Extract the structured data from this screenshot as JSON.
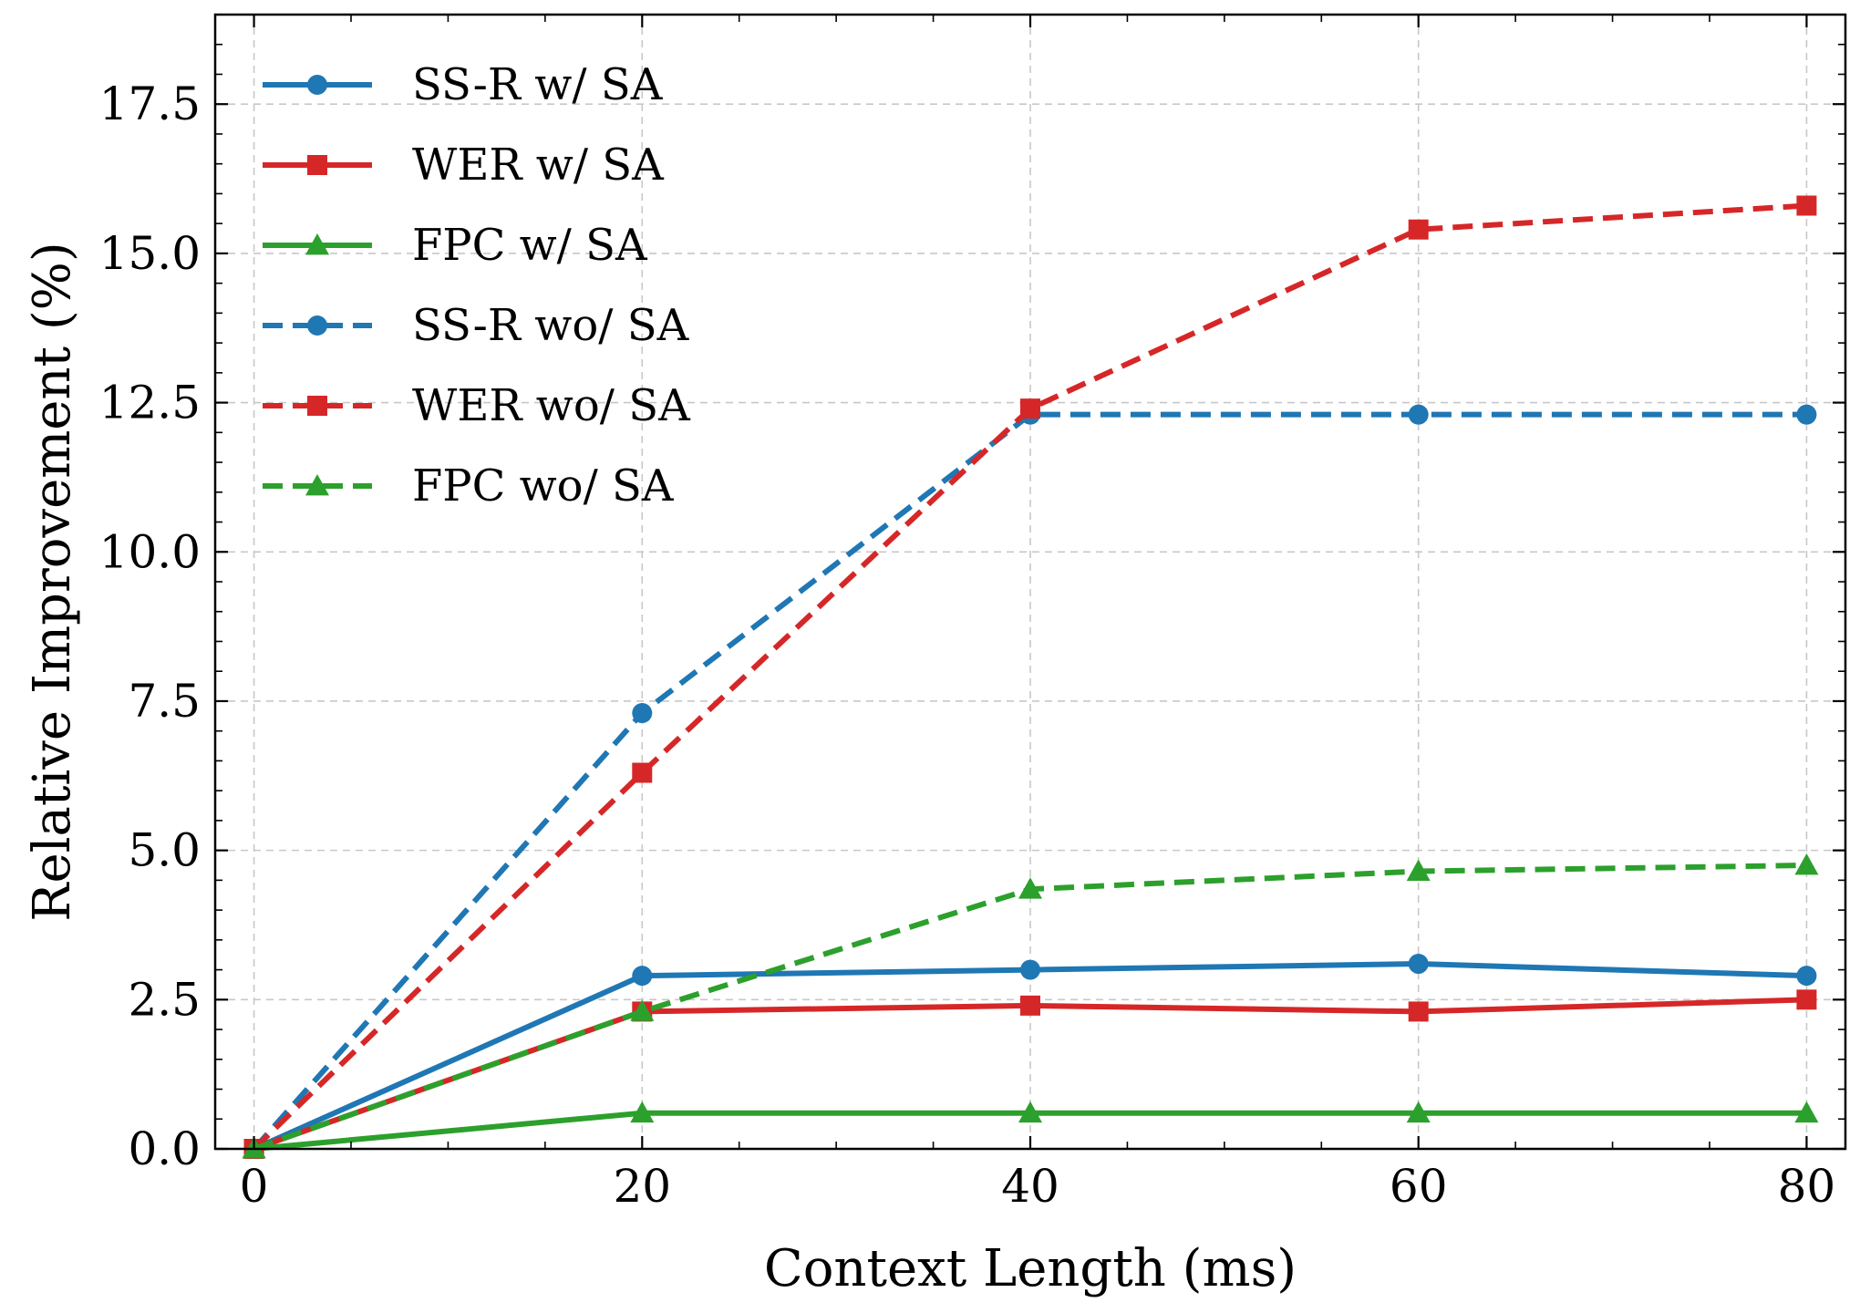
{
  "chart_data": {
    "type": "line",
    "title": "",
    "xlabel": "Context Length (ms)",
    "ylabel": "Relative Improvement (%)",
    "xlim": [
      -2,
      82
    ],
    "ylim": [
      0,
      19
    ],
    "x_ticks": [
      0,
      20,
      40,
      60,
      80
    ],
    "x_tick_labels": [
      "0",
      "20",
      "40",
      "60",
      "80"
    ],
    "y_ticks": [
      0,
      2.5,
      5,
      7.5,
      10,
      12.5,
      15,
      17.5
    ],
    "y_tick_labels": [
      "0.0",
      "2.5",
      "5.0",
      "7.5",
      "10.0",
      "12.5",
      "15.0",
      "17.5"
    ],
    "x_minor_step": 5,
    "y_minor_step": 0.5,
    "grid": true,
    "legend_position": "top-left",
    "x": [
      0,
      20,
      40,
      60,
      80
    ],
    "series": [
      {
        "name": "SS-R w/ SA",
        "values": [
          0,
          2.9,
          3.0,
          3.1,
          2.9
        ],
        "color": "#1f77b4",
        "marker": "circle",
        "style": "solid"
      },
      {
        "name": "WER w/ SA",
        "values": [
          0,
          2.3,
          2.4,
          2.3,
          2.5
        ],
        "color": "#d62728",
        "marker": "square",
        "style": "solid"
      },
      {
        "name": "FPC w/ SA",
        "values": [
          0,
          0.6,
          0.6,
          0.6,
          0.6
        ],
        "color": "#2ca02c",
        "marker": "triangle",
        "style": "solid"
      },
      {
        "name": "SS-R wo/ SA",
        "values": [
          0,
          7.3,
          12.3,
          12.3,
          12.3
        ],
        "color": "#1f77b4",
        "marker": "circle",
        "style": "dashed"
      },
      {
        "name": "WER wo/ SA",
        "values": [
          0,
          6.3,
          12.4,
          15.4,
          15.8
        ],
        "color": "#d62728",
        "marker": "square",
        "style": "dashed"
      },
      {
        "name": "FPC wo/ SA",
        "values": [
          0,
          2.3,
          4.35,
          4.65,
          4.75
        ],
        "color": "#2ca02c",
        "marker": "triangle",
        "style": "dashed"
      }
    ]
  }
}
